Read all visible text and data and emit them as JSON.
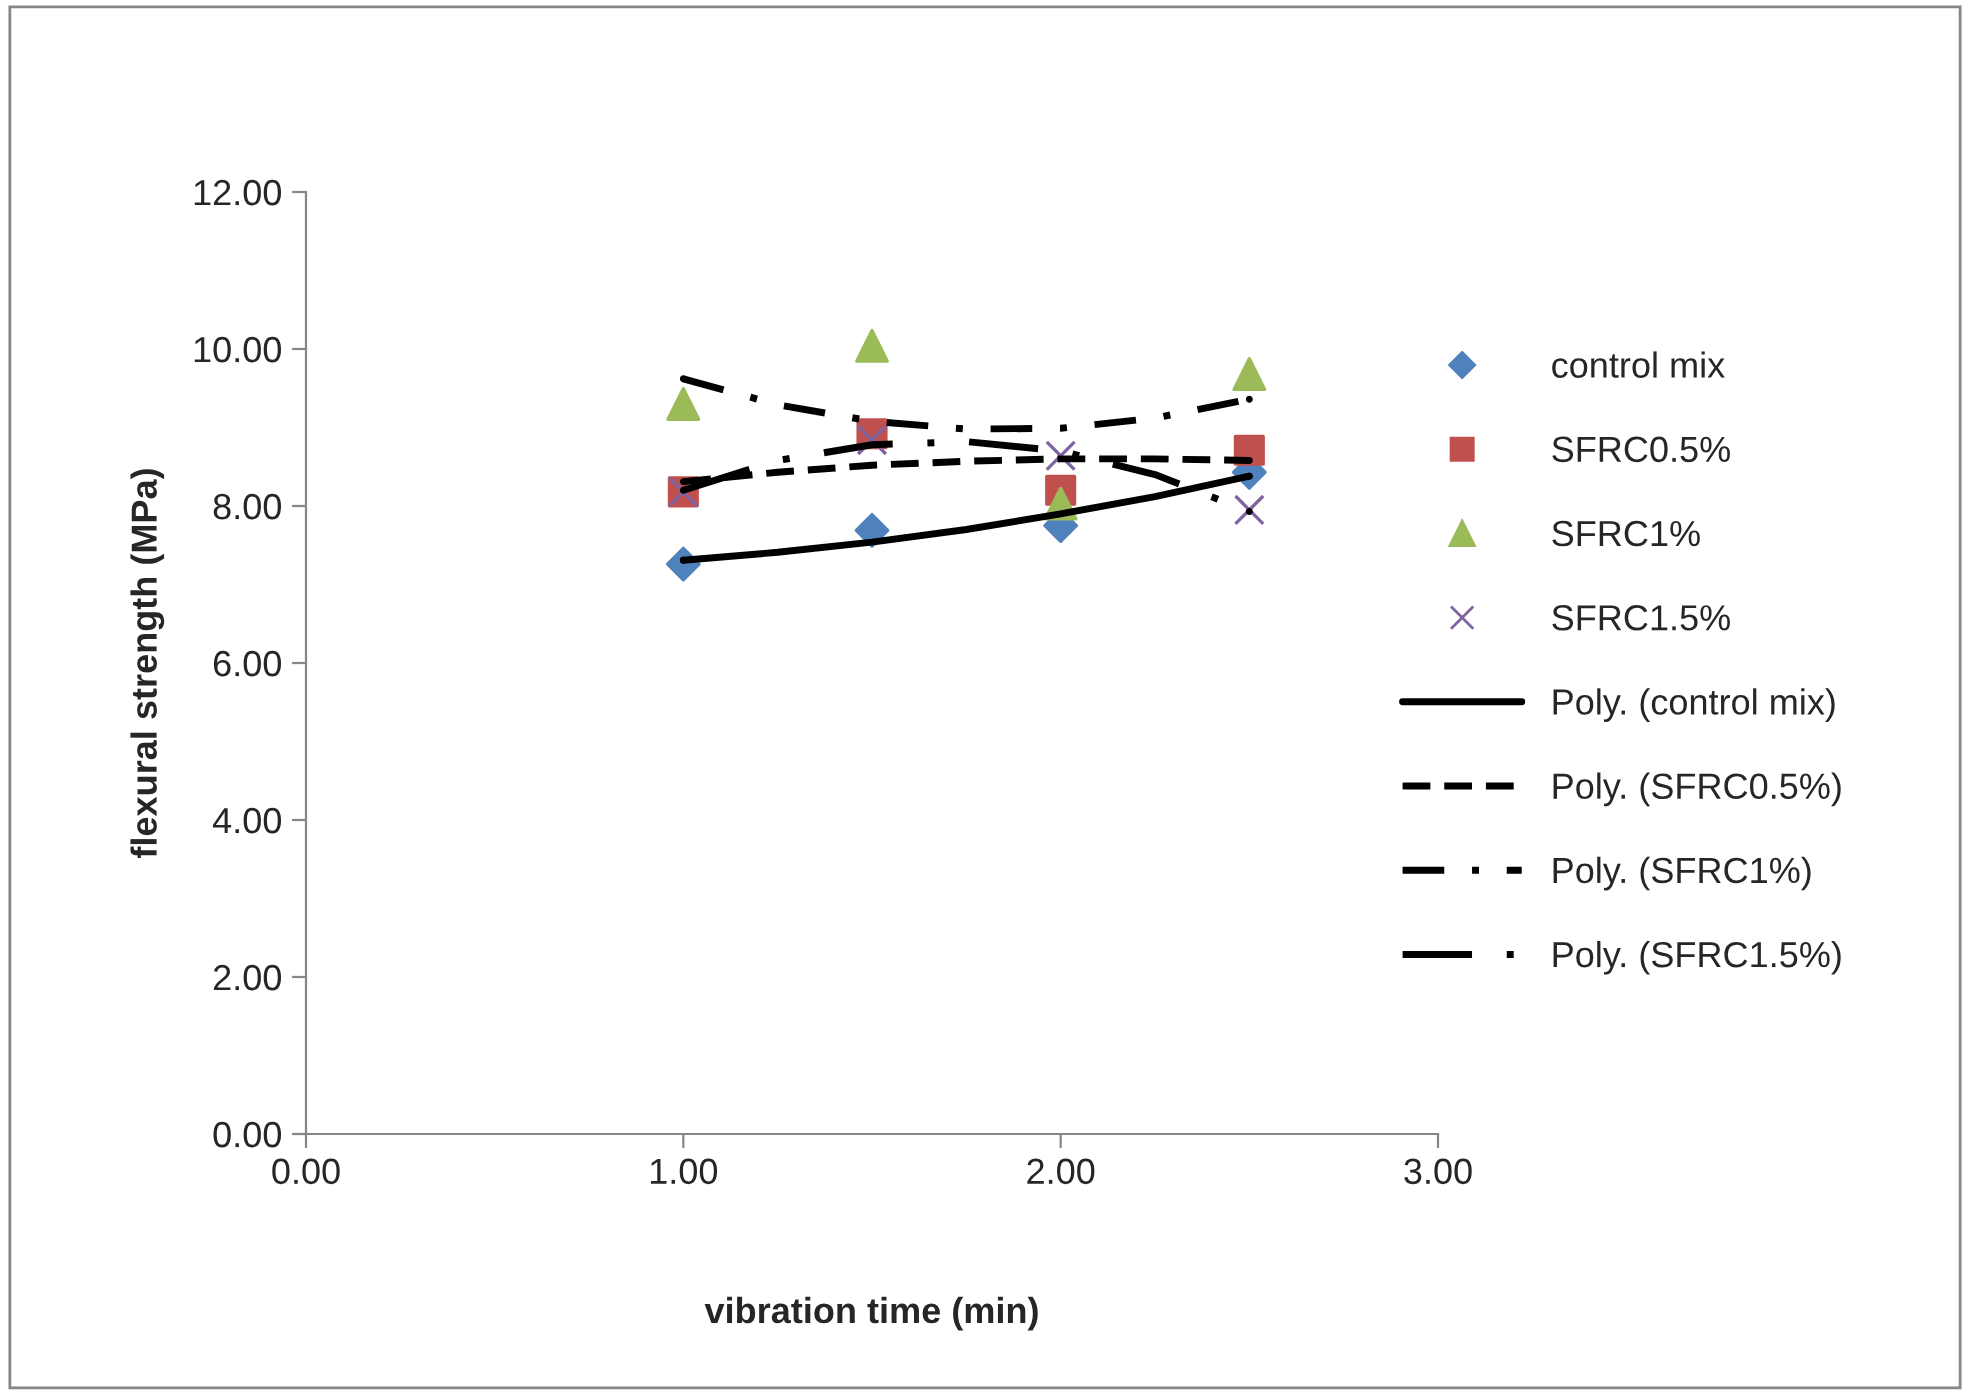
{
  "chart_data": {
    "type": "scatter",
    "xlabel": "vibration time (min)",
    "ylabel": "flexural strength (MPa)",
    "x": [
      1,
      1.5,
      2,
      2.5
    ],
    "series": [
      {
        "name": "control mix",
        "color": "#4f81bd",
        "marker": "diamond",
        "values": [
          7.26,
          7.69,
          7.75,
          8.43
        ]
      },
      {
        "name": "SFRC0.5%",
        "color": "#c0504d",
        "marker": "square",
        "values": [
          8.18,
          8.92,
          8.2,
          8.71
        ]
      },
      {
        "name": "SFRC1%",
        "color": "#9bbb59",
        "marker": "triangle",
        "values": [
          9.3,
          10.04,
          8.03,
          9.68
        ]
      },
      {
        "name": "SFRC1.5%",
        "color": "#8064a2",
        "marker": "cross",
        "values": [
          8.18,
          8.84,
          8.64,
          7.95
        ]
      },
      {
        "name": "Poly. (control mix)",
        "type": "line",
        "color": "#000000",
        "line_style": "solid",
        "x": [
          1,
          1.25,
          1.5,
          1.75,
          2,
          2.25,
          2.5
        ],
        "values": [
          7.31,
          7.41,
          7.54,
          7.7,
          7.9,
          8.12,
          8.38
        ]
      },
      {
        "name": "Poly. (SFRC0.5%)",
        "type": "line",
        "color": "#000000",
        "line_style": "dashed",
        "x": [
          1,
          1.25,
          1.5,
          1.75,
          2,
          2.25,
          2.5
        ],
        "values": [
          8.31,
          8.43,
          8.52,
          8.57,
          8.6,
          8.6,
          8.58
        ]
      },
      {
        "name": "Poly. (SFRC1%)",
        "type": "line",
        "color": "#000000",
        "line_style": "dashdot",
        "x": [
          1,
          1.25,
          1.5,
          1.75,
          2,
          2.25,
          2.5
        ],
        "values": [
          9.62,
          9.29,
          9.08,
          8.98,
          8.99,
          9.12,
          9.36
        ]
      },
      {
        "name": "Poly. (SFRC1.5%)",
        "type": "line",
        "color": "#000000",
        "line_style": "longdashdot",
        "x": [
          1,
          1.25,
          1.5,
          1.75,
          2,
          2.25,
          2.5
        ],
        "values": [
          8.2,
          8.58,
          8.78,
          8.82,
          8.7,
          8.4,
          7.93
        ]
      }
    ],
    "xlim": [
      0,
      3
    ],
    "xticks": [
      {
        "value": 0,
        "label": "0.00"
      },
      {
        "value": 1,
        "label": "1.00"
      },
      {
        "value": 2,
        "label": "2.00"
      },
      {
        "value": 3,
        "label": "3.00"
      }
    ],
    "ylim": [
      0,
      12
    ],
    "yticks": [
      {
        "value": 0,
        "label": "0.00"
      },
      {
        "value": 2,
        "label": "2.00"
      },
      {
        "value": 4,
        "label": "4.00"
      },
      {
        "value": 6,
        "label": "6.00"
      },
      {
        "value": 8,
        "label": "8.00"
      },
      {
        "value": 10,
        "label": "10.00"
      },
      {
        "value": 12,
        "label": "12.00"
      }
    ],
    "grid": false,
    "legend": "right"
  }
}
